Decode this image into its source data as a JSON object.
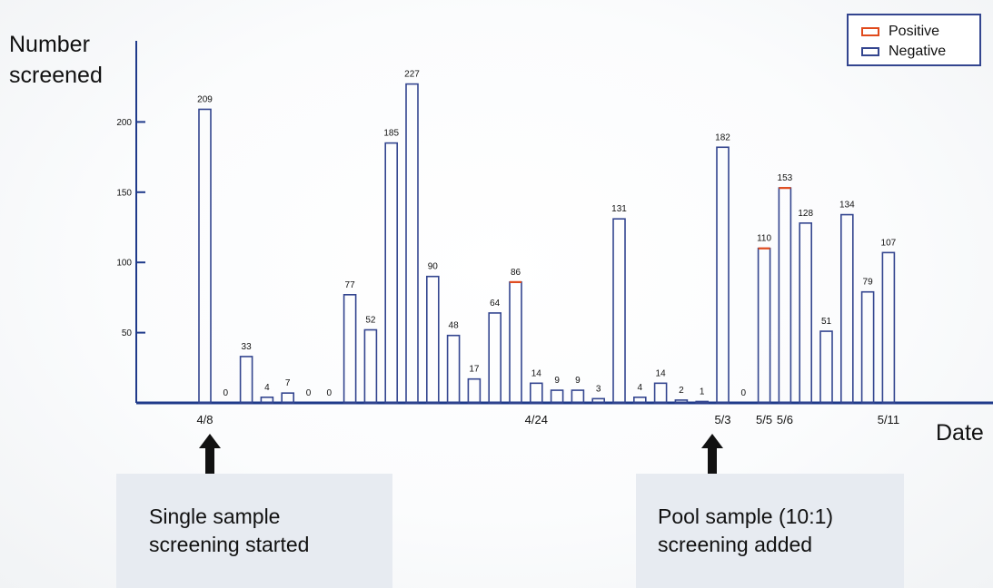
{
  "chart_data": {
    "type": "bar",
    "title": "",
    "ylabel": [
      "Number",
      "screened"
    ],
    "xlabel": "Date",
    "ylim": [
      0,
      250
    ],
    "yticks": [
      50,
      100,
      150,
      200
    ],
    "xticks": [
      "4/8",
      "4/24",
      "5/3",
      "5/5",
      "5/6",
      "5/11"
    ],
    "legend": {
      "position": "top-right",
      "entries": [
        "Positive",
        "Negative"
      ]
    },
    "colors": {
      "positive": "#e04a1c",
      "negative": "#33458f",
      "axis": "#1f3a8a"
    },
    "bars": [
      {
        "label": "209",
        "value": 209,
        "positive": false
      },
      {
        "label": "0",
        "value": 0,
        "positive": false
      },
      {
        "label": "33",
        "value": 33,
        "positive": false
      },
      {
        "label": "4",
        "value": 4,
        "positive": false
      },
      {
        "label": "7",
        "value": 7,
        "positive": false
      },
      {
        "label": "0",
        "value": 0,
        "positive": false
      },
      {
        "label": "0",
        "value": 0,
        "positive": false
      },
      {
        "label": "77",
        "value": 77,
        "positive": false
      },
      {
        "label": "52",
        "value": 52,
        "positive": false
      },
      {
        "label": "185",
        "value": 185,
        "positive": false
      },
      {
        "label": "227",
        "value": 227,
        "positive": false
      },
      {
        "label": "90",
        "value": 90,
        "positive": false
      },
      {
        "label": "48",
        "value": 48,
        "positive": false
      },
      {
        "label": "17",
        "value": 17,
        "positive": false
      },
      {
        "label": "64",
        "value": 64,
        "positive": false
      },
      {
        "label": "86",
        "value": 86,
        "positive": true
      },
      {
        "label": "14",
        "value": 14,
        "positive": false
      },
      {
        "label": "9",
        "value": 9,
        "positive": false
      },
      {
        "label": "9",
        "value": 9,
        "positive": false
      },
      {
        "label": "3",
        "value": 3,
        "positive": false
      },
      {
        "label": "131",
        "value": 131,
        "positive": false
      },
      {
        "label": "4",
        "value": 4,
        "positive": false
      },
      {
        "label": "14",
        "value": 14,
        "positive": false
      },
      {
        "label": "2",
        "value": 2,
        "positive": false
      },
      {
        "label": "1",
        "value": 1,
        "positive": false
      },
      {
        "label": "182",
        "value": 182,
        "positive": false
      },
      {
        "label": "0",
        "value": 0,
        "positive": false
      },
      {
        "label": "110",
        "value": 110,
        "positive": true
      },
      {
        "label": "153",
        "value": 153,
        "positive": true
      },
      {
        "label": "128",
        "value": 128,
        "positive": false
      },
      {
        "label": "51",
        "value": 51,
        "positive": false
      },
      {
        "label": "134",
        "value": 134,
        "positive": false
      },
      {
        "label": "79",
        "value": 79,
        "positive": false
      },
      {
        "label": "107",
        "value": 107,
        "positive": false
      }
    ],
    "annotations": [
      {
        "text": [
          "Single sample",
          "screening started"
        ],
        "points_to": "4/8"
      },
      {
        "text": [
          "Pool sample (10:1)",
          "screening added"
        ],
        "points_to": "5/3"
      }
    ]
  }
}
